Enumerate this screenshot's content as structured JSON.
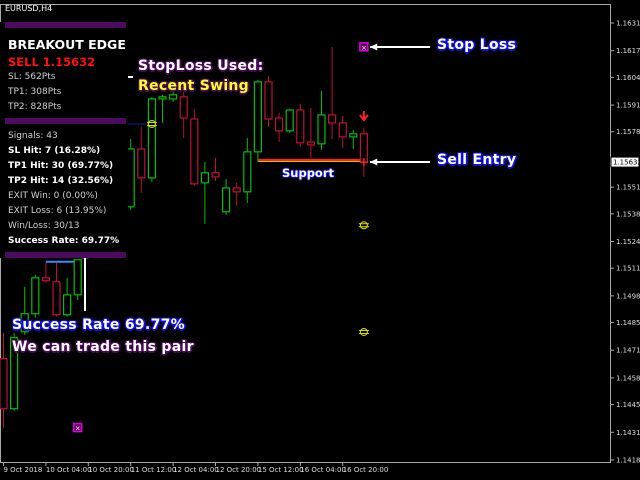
{
  "window": {
    "title": "EURUSD,H4"
  },
  "panel": {
    "heading": "BREAKOUT EDGE",
    "signal": "SELL 1.15632",
    "sl": "SL: 562Pts",
    "tp1": "TP1: 308Pts",
    "tp2": "TP2: 828Pts",
    "signals": "Signals: 43",
    "sl_hit": "SL Hit: 7 (16.28%)",
    "tp1_hit": "TP1 Hit: 30 (69.77%)",
    "tp2_hit": "TP2 Hit: 14 (32.56%)",
    "exit_win": "EXIT Win: 0 (0.00%)",
    "exit_loss": "EXIT Loss: 6 (13.95%)",
    "win_loss": "Win/Loss: 30/13",
    "success_rate": "Success Rate: 69.77%"
  },
  "annotations": {
    "stoploss_used": "StopLoss Used:",
    "recent_swing": "Recent Swing",
    "stop_loss": "Stop Loss",
    "sell_entry": "Sell Entry",
    "support": "Support",
    "success_rate": "Success Rate 69.77%",
    "trade_pair": "We can trade this pair"
  },
  "colors": {
    "bull": "#00c000",
    "bear": "#c0103a",
    "support": "#ff2020",
    "panel_bar": "#4e0a5e",
    "marker": "#e000e0",
    "target": "#e0e000"
  },
  "chart_data": {
    "type": "candlestick",
    "symbol": "EURUSD",
    "timeframe": "H4",
    "current_price": 1.15632,
    "ylim": [
      1.1418,
      1.1638
    ],
    "y_ticks": [
      1.1631,
      1.16175,
      1.16045,
      1.1591,
      1.1578,
      1.1551,
      1.1538,
      1.15245,
      1.15115,
      1.1498,
      1.1485,
      1.14715,
      1.1458,
      1.1445,
      1.14315,
      1.1418
    ],
    "x_ticks": [
      "9 Oct 2018",
      "10 Oct 04:00",
      "10 Oct 20:00",
      "11 Oct 12:00",
      "12 Oct 04:00",
      "12 Oct 20:00",
      "15 Oct 12:00",
      "16 Oct 04:00",
      "16 Oct 20:00"
    ],
    "x_tick_times": [
      "2018-10-09 12:00",
      "2018-10-10 04:00",
      "2018-10-10 20:00",
      "2018-10-11 12:00",
      "2018-10-12 04:00",
      "2018-10-12 20:00",
      "2018-10-15 12:00",
      "2018-10-16 04:00",
      "2018-10-16 20:00"
    ],
    "candles": [
      {
        "t": "2018-10-09 12:00",
        "o": 1.14674,
        "h": 1.148,
        "l": 1.14338,
        "c": 1.1443
      },
      {
        "t": "2018-10-09 16:00",
        "o": 1.1443,
        "h": 1.148,
        "l": 1.1442,
        "c": 1.14776
      },
      {
        "t": "2018-10-09 20:00",
        "o": 1.14805,
        "h": 1.15024,
        "l": 1.1479,
        "c": 1.14893
      },
      {
        "t": "2018-10-10 00:00",
        "o": 1.14893,
        "h": 1.15083,
        "l": 1.14873,
        "c": 1.15068
      },
      {
        "t": "2018-10-10 04:00",
        "o": 1.15068,
        "h": 1.15141,
        "l": 1.15044,
        "c": 1.15054
      },
      {
        "t": "2018-10-10 08:00",
        "o": 1.15049,
        "h": 1.15141,
        "l": 1.14878,
        "c": 1.14888
      },
      {
        "t": "2018-10-10 12:00",
        "o": 1.14888,
        "h": 1.15068,
        "l": 1.14878,
        "c": 1.14985
      },
      {
        "t": "2018-10-10 16:00",
        "o": 1.14985,
        "h": 1.15156,
        "l": 1.1496,
        "c": 1.15156
      },
      {
        "t": "2018-10-11 12:00",
        "o": 1.15414,
        "h": 1.15745,
        "l": 1.15399,
        "c": 1.15696
      },
      {
        "t": "2018-10-11 16:00",
        "o": 1.15696,
        "h": 1.15804,
        "l": 1.15482,
        "c": 1.15555
      },
      {
        "t": "2018-10-11 20:00",
        "o": 1.15555,
        "h": 1.1595,
        "l": 1.15536,
        "c": 1.1594
      },
      {
        "t": "2018-10-12 00:00",
        "o": 1.1594,
        "h": 1.1596,
        "l": 1.15823,
        "c": 1.1595
      },
      {
        "t": "2018-10-12 04:00",
        "o": 1.1594,
        "h": 1.1598,
        "l": 1.15925,
        "c": 1.1596
      },
      {
        "t": "2018-10-12 08:00",
        "o": 1.1595,
        "h": 1.15974,
        "l": 1.1575,
        "c": 1.15847
      },
      {
        "t": "2018-10-12 12:00",
        "o": 1.15842,
        "h": 1.15891,
        "l": 1.15516,
        "c": 1.15526
      },
      {
        "t": "2018-10-12 16:00",
        "o": 1.15531,
        "h": 1.15633,
        "l": 1.15331,
        "c": 1.1558
      },
      {
        "t": "2018-10-12 20:00",
        "o": 1.1558,
        "h": 1.15653,
        "l": 1.1554,
        "c": 1.1556
      },
      {
        "t": "2018-10-15 00:00",
        "o": 1.1539,
        "h": 1.1555,
        "l": 1.15375,
        "c": 1.15506
      },
      {
        "t": "2018-10-15 04:00",
        "o": 1.15506,
        "h": 1.15531,
        "l": 1.15419,
        "c": 1.15487
      },
      {
        "t": "2018-10-15 08:00",
        "o": 1.15487,
        "h": 1.1575,
        "l": 1.15433,
        "c": 1.15682
      },
      {
        "t": "2018-10-15 12:00",
        "o": 1.15682,
        "h": 1.16033,
        "l": 1.15633,
        "c": 1.16023
      },
      {
        "t": "2018-10-15 16:00",
        "o": 1.16023,
        "h": 1.16052,
        "l": 1.15804,
        "c": 1.15842
      },
      {
        "t": "2018-10-15 20:00",
        "o": 1.15847,
        "h": 1.15872,
        "l": 1.1573,
        "c": 1.15784
      },
      {
        "t": "2018-10-16 00:00",
        "o": 1.15784,
        "h": 1.15891,
        "l": 1.15774,
        "c": 1.15886
      },
      {
        "t": "2018-10-16 04:00",
        "o": 1.15886,
        "h": 1.15916,
        "l": 1.15706,
        "c": 1.15726
      },
      {
        "t": "2018-10-16 08:00",
        "o": 1.1573,
        "h": 1.15896,
        "l": 1.15653,
        "c": 1.15716
      },
      {
        "t": "2018-10-16 12:00",
        "o": 1.15721,
        "h": 1.15979,
        "l": 1.15692,
        "c": 1.15862
      },
      {
        "t": "2018-10-16 16:00",
        "o": 1.15862,
        "h": 1.16193,
        "l": 1.15745,
        "c": 1.15823
      },
      {
        "t": "2018-10-16 20:00",
        "o": 1.15823,
        "h": 1.15857,
        "l": 1.15701,
        "c": 1.15755
      },
      {
        "t": "2018-10-17 00:00",
        "o": 1.15755,
        "h": 1.15789,
        "l": 1.15696,
        "c": 1.1577
      },
      {
        "t": "2018-10-17 04:00",
        "o": 1.1577,
        "h": 1.15799,
        "l": 1.1556,
        "c": 1.15632
      }
    ],
    "levels": {
      "support": {
        "price": 1.15643,
        "from": "2018-10-15 12:00",
        "to": "2018-10-17 04:00"
      },
      "prior_level": {
        "price": 1.15146,
        "from": "2018-10-10 04:00",
        "to": "2018-10-10 16:00"
      },
      "prior_entry_level": {
        "price": 1.15818,
        "from": "2018-10-11 08:00",
        "to": "2018-10-11 20:00"
      }
    },
    "markers": [
      {
        "kind": "stop-loss",
        "t": "2018-10-17 04:00",
        "price": 1.16194
      },
      {
        "kind": "stop-loss",
        "t": "2018-10-10 16:00",
        "price": 1.14338
      },
      {
        "kind": "sell-arrow",
        "t": "2018-10-17 04:00",
        "price": 1.15852
      },
      {
        "kind": "entry",
        "t": "2018-10-17 04:00",
        "price": 1.15632
      },
      {
        "kind": "target",
        "t": "2018-10-17 04:00",
        "price": 1.15324
      },
      {
        "kind": "target",
        "t": "2018-10-17 04:00",
        "price": 1.14804
      },
      {
        "kind": "target",
        "t": "2018-10-11 20:00",
        "price": 1.15818
      }
    ]
  }
}
